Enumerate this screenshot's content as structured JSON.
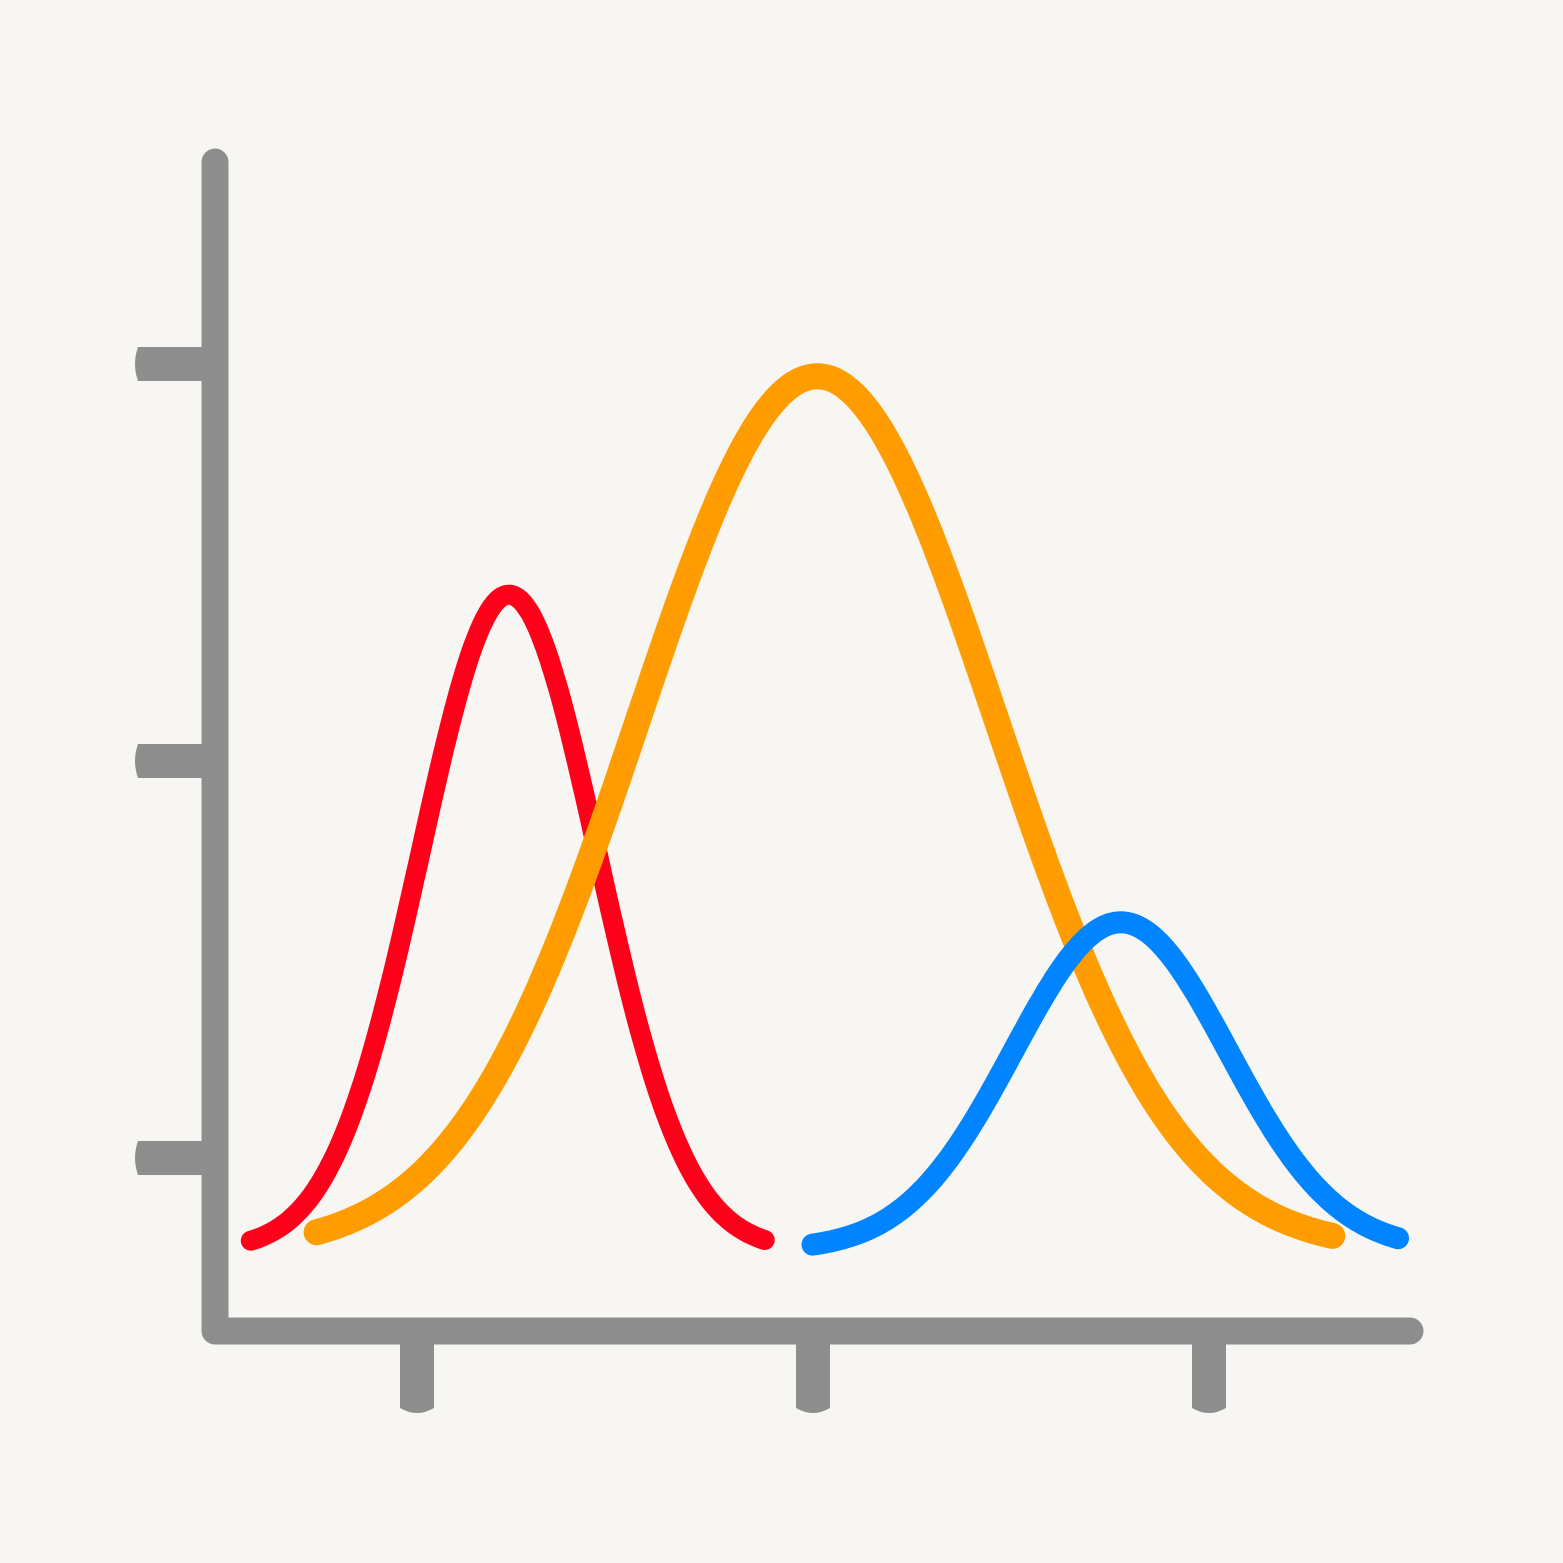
{
  "background_color": "#f7f6f2",
  "axis_color": "#8e8e8e",
  "chart_data": {
    "type": "line",
    "title": "",
    "xlabel": "",
    "ylabel": "",
    "grid": false,
    "legend": "none",
    "xlim": [
      0,
      1
    ],
    "ylim": [
      0,
      1
    ],
    "x_ticks": 3,
    "y_ticks": 3,
    "series": [
      {
        "color": "#ff001a",
        "mean": 0.246,
        "sd": 0.074,
        "peak": 0.66,
        "xrange": [
          0.03,
          0.46
        ]
      },
      {
        "color": "#ff9c00",
        "mean": 0.504,
        "sd": 0.15,
        "peak": 0.88,
        "xrange": [
          0.085,
          0.935
        ]
      },
      {
        "color": "#0084ff",
        "mean": 0.758,
        "sd": 0.09,
        "peak": 0.33,
        "xrange": [
          0.5,
          0.99
        ]
      }
    ]
  }
}
